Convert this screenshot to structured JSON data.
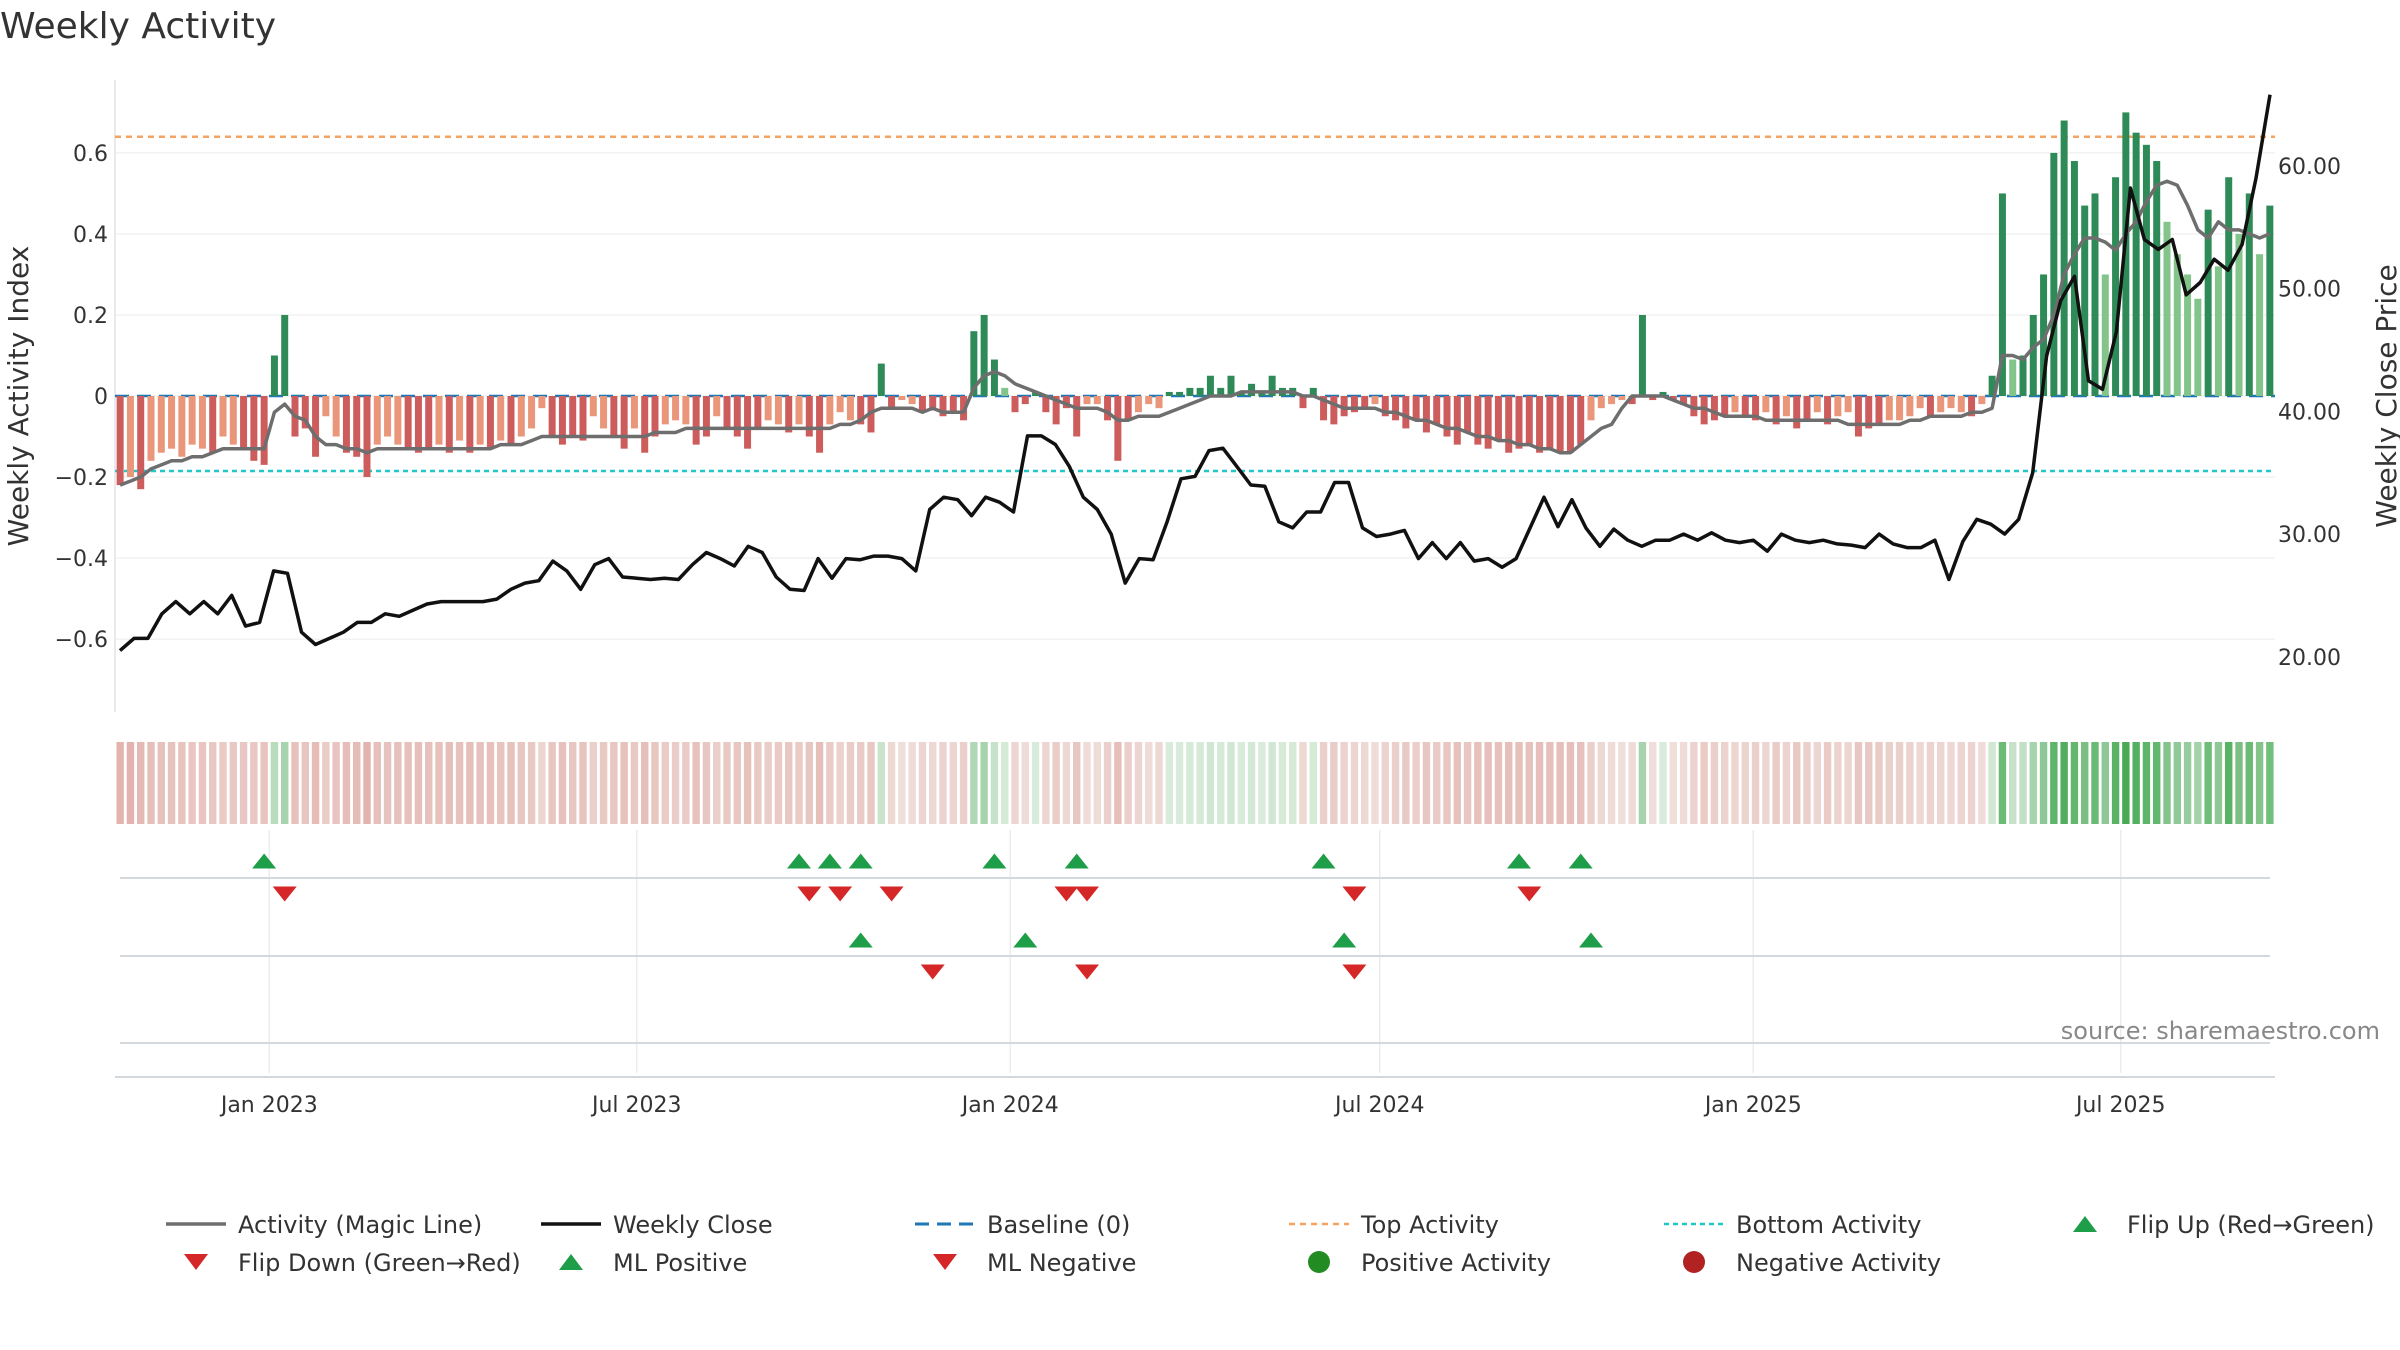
{
  "chart_data": {
    "type": "bar",
    "title": "Weekly Activity",
    "ylabel_left": "Weekly Activity Index",
    "ylabel_right": "Weekly Close Price",
    "ylim_left": [
      -0.78,
      0.78
    ],
    "ylim_right": [
      15.5,
      67
    ],
    "yticks_left": [
      0.6,
      0.4,
      0.2,
      0,
      -0.2,
      -0.4,
      -0.6
    ],
    "ytick_labels_left": [
      "0.6",
      "0.4",
      "0.2",
      "0",
      "−0.2",
      "−0.4",
      "−0.6"
    ],
    "yticks_right": [
      60,
      50,
      40,
      30,
      20
    ],
    "ytick_labels_right": [
      "60.00",
      "50.00",
      "40.00",
      "30.00",
      "20.00"
    ],
    "x_start": "2022-10-17",
    "x_end": "2025-09-15",
    "xticks": [
      {
        "date": "2023-01-01",
        "label": "Jan 2023"
      },
      {
        "date": "2023-07-01",
        "label": "Jul 2023"
      },
      {
        "date": "2024-01-01",
        "label": "Jan 2024"
      },
      {
        "date": "2024-07-01",
        "label": "Jul 2024"
      },
      {
        "date": "2025-01-01",
        "label": "Jan 2025"
      },
      {
        "date": "2025-07-01",
        "label": "Jul 2025"
      }
    ],
    "top_activity": 0.64,
    "bottom_activity": -0.185,
    "baseline": 0,
    "activity": [
      -0.22,
      -0.2,
      -0.23,
      -0.16,
      -0.14,
      -0.13,
      -0.15,
      -0.12,
      -0.13,
      -0.14,
      -0.1,
      -0.12,
      -0.13,
      -0.16,
      -0.17,
      0.1,
      0.2,
      -0.1,
      -0.08,
      -0.15,
      -0.05,
      -0.1,
      -0.14,
      -0.15,
      -0.2,
      -0.12,
      -0.1,
      -0.12,
      -0.13,
      -0.14,
      -0.13,
      -0.12,
      -0.14,
      -0.11,
      -0.14,
      -0.12,
      -0.13,
      -0.11,
      -0.12,
      -0.1,
      -0.08,
      -0.03,
      -0.1,
      -0.12,
      -0.1,
      -0.11,
      -0.05,
      -0.08,
      -0.1,
      -0.13,
      -0.08,
      -0.14,
      -0.1,
      -0.07,
      -0.06,
      -0.07,
      -0.12,
      -0.1,
      -0.05,
      -0.08,
      -0.1,
      -0.13,
      -0.08,
      -0.06,
      -0.07,
      -0.09,
      -0.07,
      -0.1,
      -0.14,
      -0.07,
      -0.04,
      -0.06,
      -0.07,
      -0.09,
      0.08,
      -0.03,
      -0.01,
      -0.02,
      -0.04,
      -0.03,
      -0.05,
      -0.04,
      -0.06,
      0.16,
      0.2,
      0.09,
      0.02,
      -0.04,
      -0.02,
      0.01,
      -0.04,
      -0.07,
      -0.03,
      -0.1,
      -0.02,
      -0.02,
      -0.06,
      -0.16,
      -0.06,
      -0.04,
      -0.02,
      -0.03,
      0.01,
      0.01,
      0.02,
      0.02,
      0.05,
      0.02,
      0.05,
      0.01,
      0.03,
      0.01,
      0.05,
      0.02,
      0.02,
      -0.03,
      0.02,
      -0.06,
      -0.07,
      -0.05,
      -0.04,
      -0.03,
      -0.02,
      -0.05,
      -0.06,
      -0.08,
      -0.06,
      -0.09,
      -0.07,
      -0.1,
      -0.12,
      -0.09,
      -0.12,
      -0.13,
      -0.11,
      -0.14,
      -0.13,
      -0.12,
      -0.14,
      -0.13,
      -0.14,
      -0.14,
      -0.12,
      -0.06,
      -0.03,
      -0.02,
      -0.01,
      -0.02,
      0.2,
      -0.01,
      0.01,
      -0.01,
      -0.02,
      -0.05,
      -0.07,
      -0.06,
      -0.05,
      -0.04,
      -0.05,
      -0.06,
      -0.04,
      -0.07,
      -0.05,
      -0.08,
      -0.06,
      -0.04,
      -0.07,
      -0.05,
      -0.04,
      -0.1,
      -0.08,
      -0.07,
      -0.06,
      -0.06,
      -0.05,
      -0.03,
      -0.05,
      -0.04,
      -0.03,
      -0.04,
      -0.05,
      -0.02,
      0.05,
      0.5,
      0.09,
      0.1,
      0.2,
      0.3,
      0.6,
      0.68,
      0.58,
      0.47,
      0.5,
      0.3,
      0.54,
      0.7,
      0.65,
      0.62,
      0.58,
      0.43,
      0.35,
      0.3,
      0.24,
      0.46,
      0.32,
      0.54,
      0.4,
      0.5,
      0.35,
      0.47
    ],
    "magic_line": [
      -0.22,
      -0.21,
      -0.2,
      -0.18,
      -0.17,
      -0.16,
      -0.16,
      -0.15,
      -0.15,
      -0.14,
      -0.13,
      -0.13,
      -0.13,
      -0.13,
      -0.13,
      -0.04,
      -0.02,
      -0.05,
      -0.06,
      -0.1,
      -0.12,
      -0.12,
      -0.13,
      -0.13,
      -0.14,
      -0.13,
      -0.13,
      -0.13,
      -0.13,
      -0.13,
      -0.13,
      -0.13,
      -0.13,
      -0.13,
      -0.13,
      -0.13,
      -0.13,
      -0.12,
      -0.12,
      -0.12,
      -0.11,
      -0.1,
      -0.1,
      -0.1,
      -0.1,
      -0.1,
      -0.1,
      -0.1,
      -0.1,
      -0.1,
      -0.1,
      -0.1,
      -0.09,
      -0.09,
      -0.09,
      -0.08,
      -0.08,
      -0.08,
      -0.08,
      -0.08,
      -0.08,
      -0.08,
      -0.08,
      -0.08,
      -0.08,
      -0.08,
      -0.08,
      -0.08,
      -0.08,
      -0.08,
      -0.07,
      -0.07,
      -0.06,
      -0.04,
      -0.03,
      -0.03,
      -0.03,
      -0.03,
      -0.04,
      -0.03,
      -0.04,
      -0.04,
      -0.04,
      0.02,
      0.05,
      0.06,
      0.05,
      0.03,
      0.02,
      0.01,
      0,
      -0.01,
      -0.02,
      -0.03,
      -0.03,
      -0.03,
      -0.04,
      -0.06,
      -0.06,
      -0.05,
      -0.05,
      -0.05,
      -0.04,
      -0.03,
      -0.02,
      -0.01,
      0,
      0,
      0,
      0.01,
      0.01,
      0.01,
      0.01,
      0.01,
      0.01,
      0,
      0,
      -0.01,
      -0.02,
      -0.03,
      -0.03,
      -0.03,
      -0.03,
      -0.04,
      -0.04,
      -0.05,
      -0.06,
      -0.06,
      -0.07,
      -0.08,
      -0.08,
      -0.09,
      -0.1,
      -0.1,
      -0.11,
      -0.11,
      -0.12,
      -0.12,
      -0.13,
      -0.13,
      -0.14,
      -0.14,
      -0.12,
      -0.1,
      -0.08,
      -0.07,
      -0.03,
      0,
      0,
      0,
      0,
      -0.01,
      -0.02,
      -0.03,
      -0.03,
      -0.04,
      -0.05,
      -0.05,
      -0.05,
      -0.05,
      -0.06,
      -0.06,
      -0.06,
      -0.06,
      -0.06,
      -0.06,
      -0.06,
      -0.06,
      -0.07,
      -0.07,
      -0.07,
      -0.07,
      -0.07,
      -0.07,
      -0.06,
      -0.06,
      -0.05,
      -0.05,
      -0.05,
      -0.05,
      -0.04,
      -0.04,
      -0.03,
      0.1,
      0.1,
      0.09,
      0.12,
      0.14,
      0.2,
      0.3,
      0.35,
      0.39,
      0.39,
      0.38,
      0.36,
      0.4,
      0.43,
      0.48,
      0.52,
      0.53,
      0.52,
      0.47,
      0.41,
      0.39,
      0.43,
      0.41,
      0.41,
      0.4,
      0.39,
      0.4
    ],
    "weekly_close": [
      20.5,
      21.5,
      21.5,
      23.5,
      24.5,
      23.5,
      24.5,
      23.5,
      25,
      22.5,
      22.8,
      27,
      26.8,
      22,
      21,
      21.5,
      22,
      22.8,
      22.8,
      23.5,
      23.3,
      23.8,
      24.3,
      24.5,
      24.5,
      24.5,
      24.5,
      24.7,
      25.5,
      26,
      26.2,
      27.8,
      27,
      25.5,
      27.5,
      28,
      26.5,
      26.4,
      26.3,
      26.4,
      26.3,
      27.5,
      28.5,
      28,
      27.4,
      29,
      28.5,
      26.5,
      25.5,
      25.4,
      28,
      26.4,
      28,
      27.9,
      28.2,
      28.2,
      28,
      27,
      32,
      33,
      32.8,
      31.5,
      33,
      32.6,
      31.8,
      38,
      38,
      37.3,
      35.5,
      33,
      32,
      30,
      26,
      28,
      27.9,
      31,
      34.5,
      34.7,
      36.8,
      37,
      35.5,
      34,
      33.9,
      31,
      30.5,
      31.8,
      31.8,
      34.2,
      34.2,
      30.5,
      29.8,
      30,
      30.3,
      28,
      29.3,
      28,
      29.3,
      27.8,
      28,
      27.3,
      28,
      30.5,
      33,
      30.6,
      32.8,
      30.5,
      29,
      30.4,
      29.5,
      29,
      29.5,
      29.5,
      30,
      29.5,
      30.1,
      29.5,
      29.3,
      29.5,
      28.6,
      30,
      29.5,
      29.3,
      29.5,
      29.2,
      29.1,
      28.9,
      30,
      29.2,
      28.9,
      28.9,
      29.5,
      26.3,
      29.4,
      31.2,
      30.8,
      30,
      31.2,
      35,
      44.5,
      49,
      51,
      42.5,
      41.8,
      46.5,
      58.2,
      54,
      53.2,
      54,
      49.5,
      50.5,
      52.4,
      51.5,
      53.6,
      59,
      65.8
    ],
    "heat_colors": [
      "#e3b3ae",
      "#e3b4af",
      "#e5b9b4",
      "#e7bfba",
      "#e7c1bc",
      "#e7c3be",
      "#e8c4bf",
      "#e9c6c1",
      "#e8c5c0",
      "#e9c7c2",
      "#eacac5",
      "#e9c9c4",
      "#e9c8c3",
      "#e9c7c2",
      "#e8c4bf",
      "#b8dcbc",
      "#a8d4ad",
      "#e7c1bc",
      "#e8c5c0",
      "#e6bcb7",
      "#ebcdc8",
      "#e8c5c0",
      "#e6bdb8",
      "#e6bcb7",
      "#e3b4af",
      "#e7c0bb",
      "#e7c3be",
      "#e7c1bc",
      "#e7c1bc",
      "#e6bfba",
      "#e7c1bc",
      "#e7c2bd",
      "#e6bfba",
      "#e7c2bd",
      "#e6bfba",
      "#e7c1bc",
      "#e7c0bb",
      "#e8c4bf",
      "#e7c2bd",
      "#e8c6c1",
      "#e9c9c4",
      "#edd5d1",
      "#e8c6c1",
      "#e7c2bd",
      "#e8c6c1",
      "#e8c4bf",
      "#ebcfcb",
      "#e9c9c4",
      "#e8c6c1",
      "#e7c1bc",
      "#e9c9c4",
      "#e6bfba",
      "#e8c6c1",
      "#eacbc6",
      "#ebcdc8",
      "#eacbc6",
      "#e7c2bd",
      "#e8c6c1",
      "#ebcfcb",
      "#e9c9c4",
      "#e8c6c1",
      "#e7c1bc",
      "#e9c9c4",
      "#eacdc8",
      "#eacbc6",
      "#e9c8c3",
      "#eacbc6",
      "#e8c6c1",
      "#e6bfba",
      "#eacbc6",
      "#ecd1cd",
      "#ebcdc8",
      "#eacbc6",
      "#e9c8c3",
      "#c9e3cc",
      "#eed8d4",
      "#f0dedb",
      "#efdbd8",
      "#edd5d1",
      "#eed8d4",
      "#ecd3cf",
      "#edd5d1",
      "#ebcfcb",
      "#b1d8b6",
      "#a8d4ad",
      "#c6e2ca",
      "#d6ead8",
      "#edd5d1",
      "#efdbd8",
      "#d9ecdb",
      "#edd5d1",
      "#eacdc8",
      "#eed8d4",
      "#e8c6c1",
      "#efdbd8",
      "#efdbd8",
      "#ebcfcb",
      "#e6bfba",
      "#ebcfcb",
      "#edd5d1",
      "#efdbd8",
      "#eed8d4",
      "#d9ecdb",
      "#d9ecdb",
      "#d6ead8",
      "#d6ead8",
      "#d0e7d3",
      "#d6ead8",
      "#d0e7d3",
      "#d9ecdb",
      "#d3e9d5",
      "#d9ecdb",
      "#d0e7d3",
      "#d6ead8",
      "#d6ead8",
      "#eed8d4",
      "#d6ead8",
      "#ebcfcb",
      "#eacdc8",
      "#ecd3cf",
      "#edd5d1",
      "#eed8d4",
      "#efdbd8",
      "#ecd3cf",
      "#ebcfcb",
      "#e9c9c4",
      "#ebcfcb",
      "#e8c6c1",
      "#eacbc6",
      "#e8c6c1",
      "#e7c2bd",
      "#e8c6c1",
      "#e7c1bc",
      "#e7c0bb",
      "#e7c2bd",
      "#e6bfba",
      "#e7c0bb",
      "#e7c1bc",
      "#e6bfba",
      "#e7c0bb",
      "#e6bfba",
      "#e6bfba",
      "#e7c1bc",
      "#ebcfcb",
      "#eed8d4",
      "#efdbd8",
      "#f0dedb",
      "#efdbd8",
      "#a8d4ad",
      "#f0dedb",
      "#d9ecdb",
      "#f0dedb",
      "#efdbd8",
      "#ecd3cf",
      "#eacbc6",
      "#ebcfcb",
      "#ecd3cf",
      "#edd5d1",
      "#ecd3cf",
      "#ebcfcb",
      "#edd5d1",
      "#eacbc6",
      "#ecd3cf",
      "#e9c9c4",
      "#ebcfcb",
      "#edd5d1",
      "#eacbc6",
      "#ecd3cf",
      "#edd5d1",
      "#e8c6c1",
      "#e9c9c4",
      "#eacbc6",
      "#ebcfcb",
      "#ebcfcb",
      "#ecd3cf",
      "#eed8d4",
      "#ecd3cf",
      "#edd5d1",
      "#eed8d4",
      "#edd5d1",
      "#ecd3cf",
      "#efdbd8",
      "#d0e7d3",
      "#6abb74",
      "#c6e2ca",
      "#c3e0c7",
      "#a8d4ad",
      "#8ec896",
      "#5cb568",
      "#52ae5e",
      "#63b86e",
      "#7bbf84",
      "#6abb74",
      "#8ec896",
      "#59b365",
      "#4aa957",
      "#55b061",
      "#5cb568",
      "#63b86e",
      "#84c38c",
      "#90c998",
      "#97cd9e",
      "#a4d2aa",
      "#70bd7a",
      "#8ec896",
      "#59b365",
      "#7bbf84",
      "#6abb74",
      "#84c38c",
      "#72be7b"
    ],
    "flip_up": [
      14,
      66,
      69,
      72,
      85,
      93,
      117,
      136,
      142
    ],
    "flip_down": [
      16,
      67,
      70,
      75,
      92,
      94,
      120,
      137
    ],
    "ml_positive": [
      72,
      88,
      119,
      143
    ],
    "ml_negative": [
      79,
      94,
      120
    ],
    "legend": [
      {
        "key": "magic",
        "label": "Activity (Magic Line)"
      },
      {
        "key": "close",
        "label": "Weekly Close"
      },
      {
        "key": "baseline",
        "label": "Baseline (0)"
      },
      {
        "key": "top",
        "label": "Top Activity"
      },
      {
        "key": "bottom",
        "label": "Bottom Activity"
      },
      {
        "key": "flipup",
        "label": "Flip Up (Red→Green)"
      },
      {
        "key": "flipdown",
        "label": "Flip Down (Green→Red)"
      },
      {
        "key": "mlpos",
        "label": "ML Positive"
      },
      {
        "key": "mlneg",
        "label": "ML Negative"
      },
      {
        "key": "posact",
        "label": "Positive Activity"
      },
      {
        "key": "negact",
        "label": "Negative Activity"
      }
    ],
    "source": "source: sharemaestro.com",
    "colors": {
      "pos_dark": "#2e8b57",
      "pos_light": "#82c48a",
      "neg_dark": "#cd5c5c",
      "neg_light": "#e9967a",
      "magic": "#6e6e6e",
      "close": "#111111",
      "baseline": "#1f77b4",
      "top": "#f4a460",
      "bottom": "#20c8c8",
      "marker_up": "#1f9e49",
      "marker_down": "#d62728",
      "pos_dot": "#228b22",
      "neg_dot": "#b22222"
    }
  }
}
